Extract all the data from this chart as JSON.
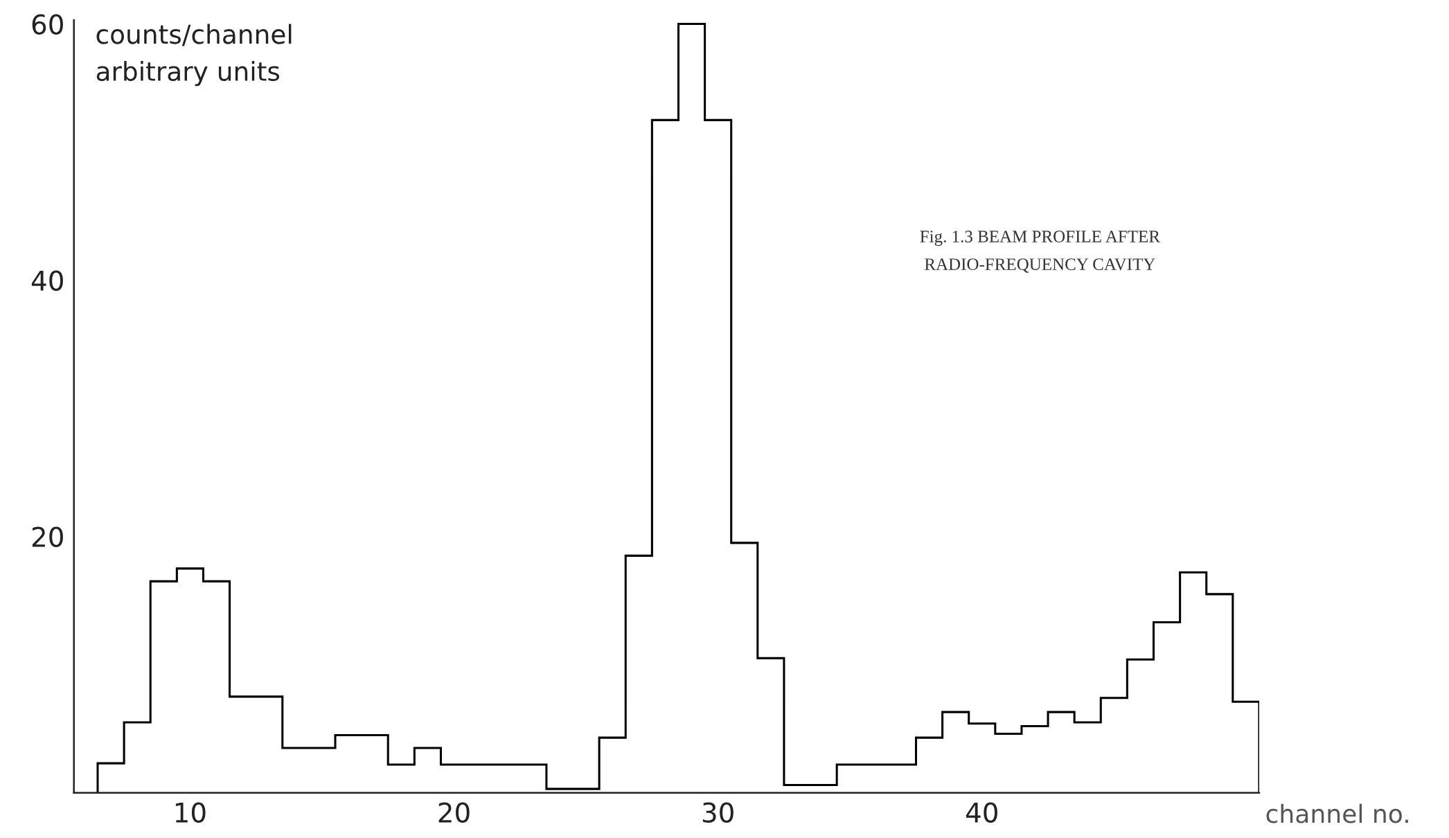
{
  "chart_data": {
    "type": "histogram",
    "xlabel": "channel no.",
    "ylabel": "counts/channel\narbitrary units",
    "annotations": [
      "Fig. 1.3 BEAM PROFILE AFTER\nRADIO-FREQUENCY CAVITY"
    ],
    "bins": [
      6.5,
      7.5,
      8.5,
      9.5,
      10.5,
      11.5,
      12.5,
      13.5,
      14.5,
      15.5,
      16.5,
      17.5,
      18.5,
      19.5,
      20.5,
      21.5,
      22.5,
      23.5,
      24.5,
      25.5,
      26.5,
      27.5,
      28.5,
      29.5,
      30.5,
      31.5,
      32.5,
      33.5,
      34.5,
      35.5,
      36.5,
      37.5,
      38.5,
      39.5,
      40.5,
      41.5,
      42.5,
      43.5,
      44.5,
      45.5,
      46.5,
      47.5,
      48.5,
      49.5,
      50.5
    ],
    "values": [
      2.3,
      5.5,
      16.5,
      17.5,
      16.5,
      7.5,
      7.5,
      3.5,
      3.5,
      4.5,
      4.5,
      2.2,
      3.5,
      2.2,
      2.2,
      2.2,
      2.2,
      0.3,
      0.3,
      4.3,
      18.5,
      52.5,
      60,
      52.5,
      19.5,
      10.5,
      0.6,
      0.6,
      2.2,
      2.2,
      2.2,
      4.3,
      6.3,
      5.4,
      4.6,
      5.2,
      6.3,
      5.5,
      7.4,
      10.4,
      13.3,
      17.2,
      15.5,
      7.1
    ],
    "color": "#000000",
    "xlim": [
      5.6,
      50.5
    ],
    "ylim": [
      0,
      60.3
    ],
    "xticks": [
      10,
      20,
      30,
      40
    ],
    "yticks": [
      20,
      40,
      60
    ],
    "grid": false,
    "legend": false
  }
}
